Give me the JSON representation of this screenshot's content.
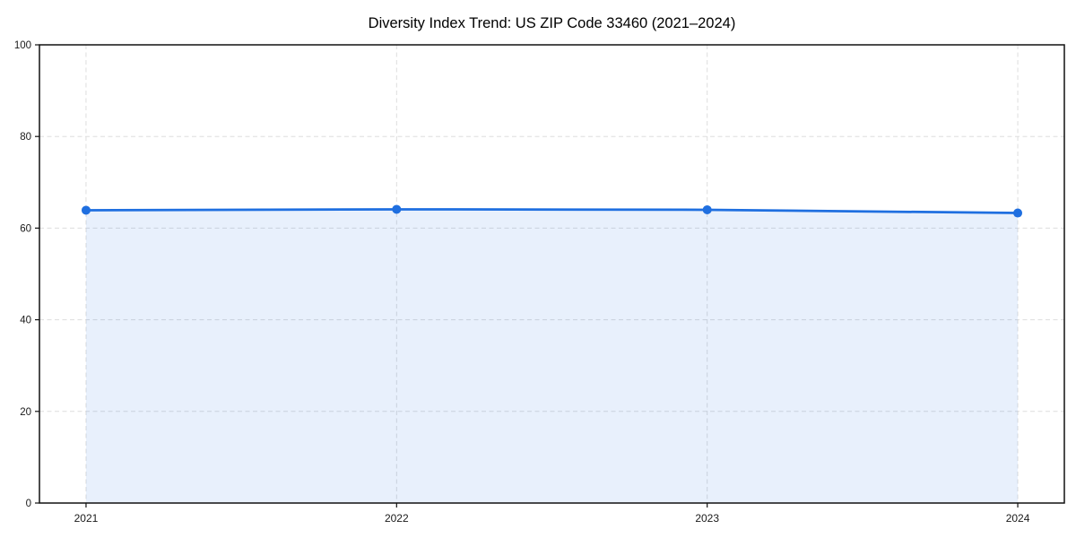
{
  "chart_data": {
    "type": "area",
    "title": "Diversity Index Trend: US ZIP Code 33460 (2021–2024)",
    "categories": [
      "2021",
      "2022",
      "2023",
      "2024"
    ],
    "series": [
      {
        "name": "Diversity Index",
        "values": [
          63.9,
          64.1,
          64.0,
          63.3
        ]
      }
    ],
    "xlabel": "",
    "ylabel": "",
    "ylim": [
      0,
      100
    ],
    "yticks": [
      0,
      20,
      40,
      60,
      80,
      100
    ],
    "grid": true,
    "grid_style": "dashed",
    "legend_position": "none",
    "marker": "circle",
    "colors": {
      "line": "#1f6fe0",
      "marker": "#1f6fe0",
      "fill": "#1f6fe0",
      "fill_opacity": 0.1,
      "grid": "#dddddd",
      "spine": "#111111",
      "tick_text": "#1a1a1a",
      "title_text": "#000000",
      "background": "#ffffff"
    }
  }
}
